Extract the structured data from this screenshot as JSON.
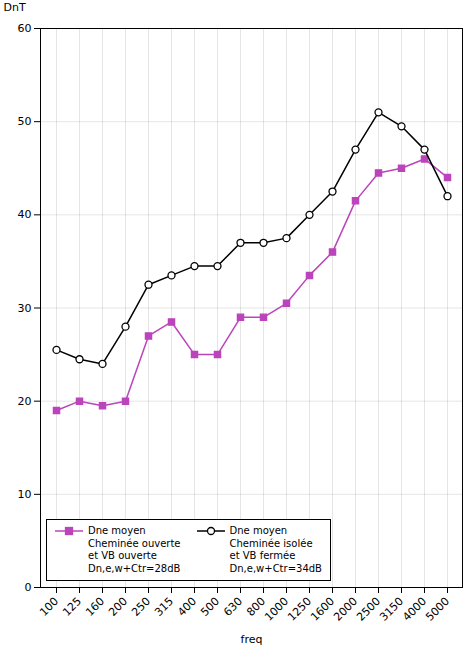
{
  "chart_data": {
    "type": "line",
    "xlabel": "freq",
    "ylabel": "DnT",
    "categories": [
      "100",
      "125",
      "160",
      "200",
      "250",
      "315",
      "400",
      "500",
      "630",
      "800",
      "1000",
      "1250",
      "1600",
      "2000",
      "2500",
      "3150",
      "4000",
      "5000"
    ],
    "series": [
      {
        "name": "Dne moyen\nCheminée ouverte\net VB ouverte\nDn,e,w+Ctr=28dB",
        "color": "#bb44bb",
        "marker": "square",
        "values": [
          19,
          20,
          19.5,
          20,
          27,
          28.5,
          25,
          25,
          29,
          29,
          30.5,
          33.5,
          36,
          41.5,
          44.5,
          45,
          46,
          44
        ]
      },
      {
        "name": "Dne moyen\nCheminée isolée\net VB fermée\nDn,e,w+Ctr=34dB",
        "color": "#000000",
        "marker": "circle_open",
        "values": [
          25.5,
          24.5,
          24,
          28,
          32.5,
          33.5,
          34.5,
          34.5,
          37,
          37,
          37.5,
          40,
          42.5,
          47,
          51,
          49.5,
          47,
          42
        ]
      }
    ],
    "ylim": [
      0,
      60
    ],
    "yticks": [
      0,
      10,
      20,
      30,
      40,
      50,
      60
    ],
    "grid": true,
    "legend": "lower left"
  }
}
